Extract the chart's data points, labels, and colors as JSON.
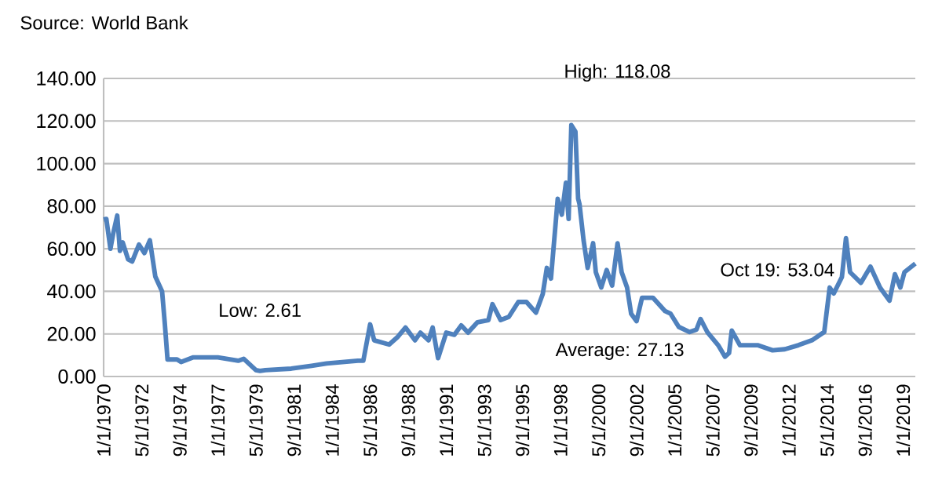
{
  "chart_data": {
    "type": "line",
    "x": [
      "1970-01",
      "1970-03",
      "1970-06",
      "1970-08",
      "1970-11",
      "1971-01",
      "1971-03",
      "1971-07",
      "1971-10",
      "1972-03",
      "1972-07",
      "1972-11",
      "1973-03",
      "1973-08",
      "1973-10",
      "1973-12",
      "1974-07",
      "1974-10",
      "1975-07",
      "1977-01",
      "1978-04",
      "1978-08",
      "1979-05",
      "1979-08",
      "1979-12",
      "1981-07",
      "1982-10",
      "1983-09",
      "1985-08",
      "1985-12",
      "1986-05",
      "1986-08",
      "1987-07",
      "1988-01",
      "1988-07",
      "1989-02",
      "1989-06",
      "1989-12",
      "1990-03",
      "1990-07",
      "1991-01",
      "1991-07",
      "1991-12",
      "1992-05",
      "1992-12",
      "1993-08",
      "1993-11",
      "1994-05",
      "1994-11",
      "1995-06",
      "1995-12",
      "1996-07",
      "1996-12",
      "1997-03",
      "1997-06",
      "1997-11",
      "1998-02",
      "1998-05",
      "1998-07",
      "1998-09",
      "1998-12",
      "1999-02",
      "1999-03",
      "1999-06",
      "1999-09",
      "2000-01",
      "2000-03",
      "2000-07",
      "2000-11",
      "2001-03",
      "2001-07",
      "2001-10",
      "2002-02",
      "2002-05",
      "2002-09",
      "2003-01",
      "2003-09",
      "2004-06",
      "2004-10",
      "2005-04",
      "2005-12",
      "2006-05",
      "2006-08",
      "2007-01",
      "2007-09",
      "2008-02",
      "2008-05",
      "2008-07",
      "2009-01",
      "2010-02",
      "2011-01",
      "2011-10",
      "2012-08",
      "2013-06",
      "2014-03",
      "2014-07",
      "2014-10",
      "2015-04",
      "2015-07",
      "2015-10",
      "2016-06",
      "2017-01",
      "2017-08",
      "2018-03",
      "2018-07",
      "2018-11",
      "2019-02",
      "2019-10"
    ],
    "series": [
      {
        "color": "#4f81bd",
        "values": [
          73.7,
          74,
          60,
          67,
          75.6,
          59,
          63,
          55,
          54,
          62,
          58,
          64,
          47,
          40,
          25,
          8,
          8,
          6.8,
          9,
          9,
          7.4,
          8.3,
          3,
          2.61,
          3,
          3.7,
          5,
          6.1,
          7.4,
          7.4,
          24.5,
          17,
          15,
          18.4,
          23,
          17,
          20.6,
          17,
          23,
          8.6,
          20.6,
          19.6,
          24,
          20.6,
          25.5,
          26.5,
          34,
          26.5,
          28,
          35,
          35,
          30,
          38.8,
          51,
          46,
          83.5,
          76,
          91,
          74,
          118.08,
          115,
          83.5,
          81,
          64,
          51,
          62.6,
          49,
          41.8,
          50,
          42.7,
          62.6,
          49,
          41.8,
          29.5,
          26,
          37,
          37,
          30.7,
          29.5,
          23.3,
          20.9,
          22,
          27,
          20.9,
          14.7,
          9.3,
          11,
          21.6,
          14.7,
          14.7,
          12.3,
          12.8,
          14.7,
          17,
          20.9,
          41.8,
          39,
          46.7,
          65,
          49,
          44,
          51.6,
          41.8,
          35.6,
          48,
          41.8,
          49,
          53.04
        ]
      }
    ],
    "xlim": [
      "1970-01",
      "2019-10"
    ],
    "xticks": [
      {
        "value": "1970-01",
        "label": "1/1/1970"
      },
      {
        "value": "1972-05",
        "label": "5/1/1972"
      },
      {
        "value": "1974-09",
        "label": "9/1/1974"
      },
      {
        "value": "1977-01",
        "label": "1/1/1977"
      },
      {
        "value": "1979-05",
        "label": "5/1/1979"
      },
      {
        "value": "1981-09",
        "label": "9/1/1981"
      },
      {
        "value": "1984-01",
        "label": "1/1/1984"
      },
      {
        "value": "1986-05",
        "label": "5/1/1986"
      },
      {
        "value": "1988-09",
        "label": "9/1/1988"
      },
      {
        "value": "1991-01",
        "label": "1/1/1991"
      },
      {
        "value": "1993-05",
        "label": "5/1/1993"
      },
      {
        "value": "1995-09",
        "label": "9/1/1995"
      },
      {
        "value": "1998-01",
        "label": "1/1/1998"
      },
      {
        "value": "2000-05",
        "label": "5/1/2000"
      },
      {
        "value": "2002-09",
        "label": "9/1/2002"
      },
      {
        "value": "2005-01",
        "label": "1/1/2005"
      },
      {
        "value": "2007-05",
        "label": "5/1/2007"
      },
      {
        "value": "2009-09",
        "label": "9/1/2009"
      },
      {
        "value": "2012-01",
        "label": "1/1/2012"
      },
      {
        "value": "2014-05",
        "label": "5/1/2014"
      },
      {
        "value": "2016-09",
        "label": "9/1/2016"
      },
      {
        "value": "2019-01",
        "label": "1/1/2019"
      }
    ],
    "ylim": [
      0,
      140
    ],
    "yticks": [
      {
        "value": 0,
        "label": "0.00"
      },
      {
        "value": 20,
        "label": "20.00"
      },
      {
        "value": 40,
        "label": "40.00"
      },
      {
        "value": 60,
        "label": "60.00"
      },
      {
        "value": 80,
        "label": "80.00"
      },
      {
        "value": 100,
        "label": "100.00"
      },
      {
        "value": 120,
        "label": "120.00"
      },
      {
        "value": 140,
        "label": "140.00"
      }
    ],
    "grid": "y",
    "marker": "none",
    "line_style": "solid",
    "annotations": [
      "Source: World Bank",
      {
        "text": "Low: 2.61",
        "x": "1979-08",
        "y": 2.61
      },
      {
        "text": "High: 118.08",
        "x": "1998-09",
        "y": 118.08
      },
      "Average: 27.13",
      "Oct 19: 53.04"
    ]
  }
}
